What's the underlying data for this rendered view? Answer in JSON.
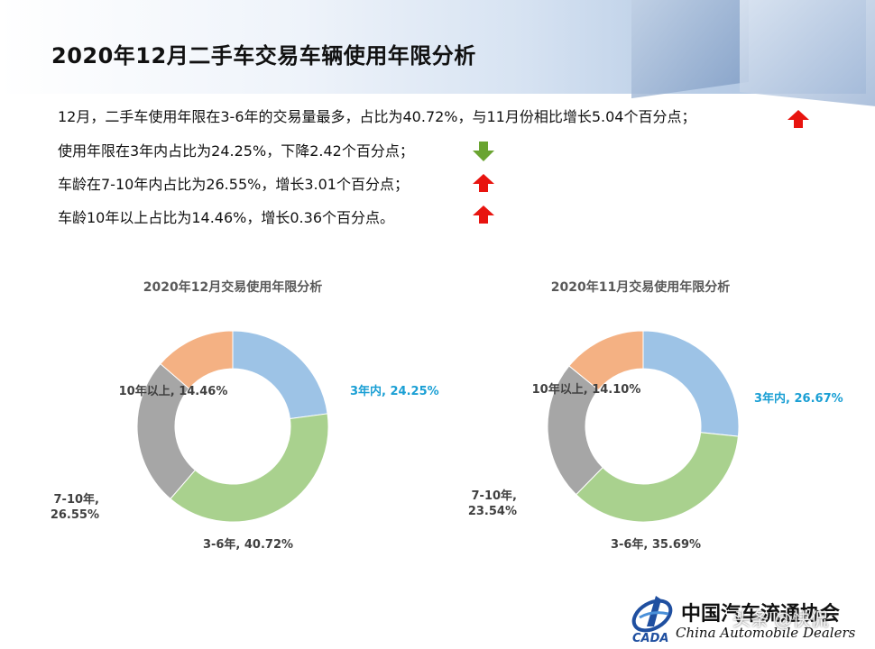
{
  "slide": {
    "title": "2020年12月二手车交易车辆使用年限分析",
    "lines": [
      {
        "text": "12月，二手车使用年限在3-6年的交易量最多，占比为40.72%，与11月份相比增长5.04个百分点；",
        "trend": "up",
        "color": "#e8140f"
      },
      {
        "text": "使用年限在3年内占比为24.25%，下降2.42个百分点；",
        "trend": "down",
        "color": "#6aa431"
      },
      {
        "text": "车龄在7-10年内占比为26.55%，增长3.01个百分点；",
        "trend": "up",
        "color": "#e8140f"
      },
      {
        "text": "车龄10年以上占比为14.46%，增长0.36个百分点。",
        "trend": "up",
        "color": "#e8140f"
      }
    ]
  },
  "chart_data": [
    {
      "type": "pie",
      "title": "2020年12月交易使用年限分析",
      "categories": [
        "3年内",
        "3-6年",
        "7-10年",
        "10年以上"
      ],
      "values": [
        24.25,
        40.72,
        26.55,
        14.46
      ],
      "labels": [
        "3年内, 24.25%",
        "3-6年, 40.72%",
        "7-10年,\n26.55%",
        "10年以上, 14.46%"
      ],
      "colors": [
        "#9dc3e6",
        "#a9d18e",
        "#a6a6a6",
        "#f4b183"
      ],
      "label_colors": [
        "#1a9fd4",
        "#404040",
        "#404040",
        "#404040"
      ]
    },
    {
      "type": "pie",
      "title": "2020年11月交易使用年限分析",
      "categories": [
        "3年内",
        "3-6年",
        "7-10年",
        "10年以上"
      ],
      "values": [
        26.67,
        35.69,
        23.54,
        14.1
      ],
      "labels": [
        "3年内, 26.67%",
        "3-6年, 35.69%",
        "7-10年,\n23.54%",
        "10年以上, 14.10%"
      ],
      "colors": [
        "#9dc3e6",
        "#a9d18e",
        "#a6a6a6",
        "#f4b183"
      ],
      "label_colors": [
        "#1a9fd4",
        "#404040",
        "#404040",
        "#404040"
      ]
    }
  ],
  "footer": {
    "logo_cn": "中国汽车流通协会",
    "logo_en": "China Automobile Dealers",
    "logo_mark": "CADA",
    "watermark": "头条 @快侃"
  }
}
